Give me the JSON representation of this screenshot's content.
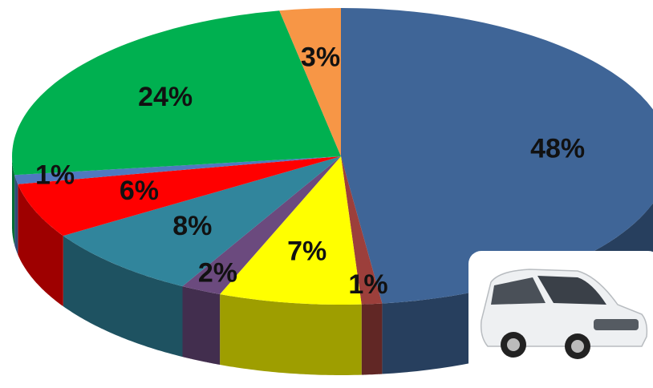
{
  "chart_data": {
    "type": "pie",
    "values": [
      48,
      1,
      7,
      2,
      8,
      6,
      1,
      24,
      3
    ],
    "value_labels": [
      "48%",
      "1%",
      "7%",
      "2%",
      "8%",
      "6%",
      "1%",
      "24%",
      "3%"
    ],
    "colors": [
      "#3f6597",
      "#9c3f3b",
      "#ffff00",
      "#6b4a7e",
      "#31859c",
      "#ff0000",
      "#4f79c0",
      "#00b050",
      "#f79646"
    ],
    "start_angle": 0,
    "direction": "clockwise",
    "three_d": true
  }
}
